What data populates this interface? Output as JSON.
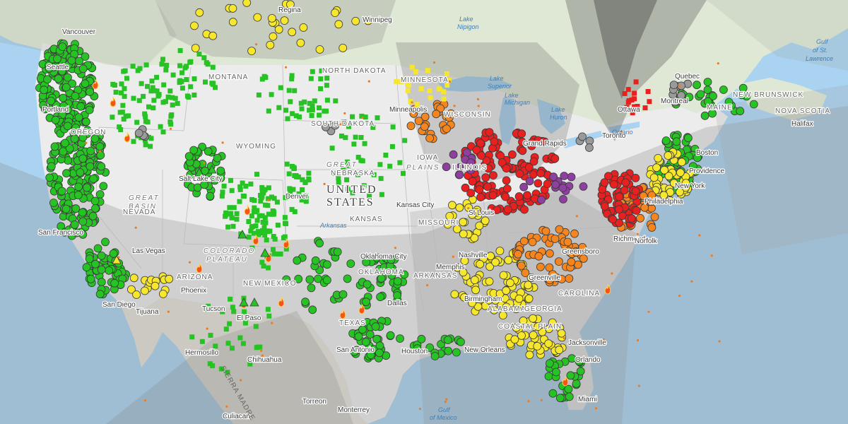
{
  "map": {
    "colors": {
      "ocean": "#a9d3f0",
      "land": "#e3e8dd",
      "us_land": "#ececec",
      "canada_land": "#dfe8d4",
      "mexico_land": "#e5e2d8",
      "smoke_light": "#8a8a8a",
      "smoke_dark": "#4a4a4a",
      "good": "#27c224",
      "moderate": "#f6e72c",
      "usg": "#f5861f",
      "unhealthy": "#e82020",
      "very_unhealthy": "#8e3fa0",
      "no_data": "#9a9a9a",
      "fire": "#f07b1c"
    },
    "country_labels": [
      {
        "name": "country-label-united",
        "text": "UNITED"
      },
      {
        "name": "country-label-states",
        "text": "STATES"
      }
    ],
    "region_labels": [
      {
        "name": "region-great-plains-1",
        "text": "GREAT"
      },
      {
        "name": "region-great-plains-2",
        "text": "PLAINS"
      },
      {
        "name": "region-great-basin-1",
        "text": "GREAT"
      },
      {
        "name": "region-great-basin-2",
        "text": "BASIN"
      },
      {
        "name": "region-colorado-plateau-1",
        "text": "COLORADO"
      },
      {
        "name": "region-colorado-plateau-2",
        "text": "PLATEAU"
      }
    ],
    "state_labels": [
      {
        "name": "state-north-dakota",
        "text": "NORTH DAKOTA"
      },
      {
        "name": "state-south-dakota",
        "text": "SOUTH DAKOTA"
      },
      {
        "name": "state-montana",
        "text": "MONTANA"
      },
      {
        "name": "state-wyoming",
        "text": "WYOMING"
      },
      {
        "name": "state-nebraska",
        "text": "NEBRASKA"
      },
      {
        "name": "state-nevada",
        "text": "NEVADA"
      },
      {
        "name": "state-kansas",
        "text": "KANSAS"
      },
      {
        "name": "state-missouri",
        "text": "MISSOURI"
      },
      {
        "name": "state-new-mexico",
        "text": "NEW MEXICO"
      },
      {
        "name": "state-texas",
        "text": "TEXAS"
      },
      {
        "name": "state-oklahoma",
        "text": "OKLAHOMA"
      },
      {
        "name": "state-arkansas",
        "text": "ARKANSAS"
      },
      {
        "name": "state-iowa",
        "text": "IOWA"
      },
      {
        "name": "state-minnesota",
        "text": "MINNESOTA"
      },
      {
        "name": "state-wisconsin",
        "text": "WISCONSIN"
      },
      {
        "name": "state-illinois",
        "text": "ILLINOIS"
      },
      {
        "name": "state-maine",
        "text": "MAINE"
      },
      {
        "name": "state-nova-scotia",
        "text": "NOVA SCOTIA"
      },
      {
        "name": "state-new-brunswick",
        "text": "NEW BRUNSWICK"
      },
      {
        "name": "state-oregon",
        "text": "OREGON"
      },
      {
        "name": "state-arizona",
        "text": "ARIZONA"
      },
      {
        "name": "state-alabama",
        "text": "ALABAMA"
      },
      {
        "name": "state-carolina",
        "text": "CAROLINA"
      },
      {
        "name": "state-georgia",
        "text": "GEORGIA"
      },
      {
        "name": "state-coastal-plain",
        "text": "COASTAL PLAIN"
      }
    ],
    "city_labels": [
      {
        "name": "city-vancouver",
        "text": "Vancouver"
      },
      {
        "name": "city-seattle",
        "text": "Seattle"
      },
      {
        "name": "city-portland",
        "text": "Portland"
      },
      {
        "name": "city-regina",
        "text": "Regina"
      },
      {
        "name": "city-winnipeg",
        "text": "Winnipeg"
      },
      {
        "name": "city-salt-lake",
        "text": "Salt Lake City"
      },
      {
        "name": "city-san-francisco",
        "text": "San Francisco"
      },
      {
        "name": "city-las-vegas",
        "text": "Las Vegas"
      },
      {
        "name": "city-san-diego",
        "text": "San Diego"
      },
      {
        "name": "city-tijuana",
        "text": "Tijuana"
      },
      {
        "name": "city-phoenix",
        "text": "Phoenix"
      },
      {
        "name": "city-tucson",
        "text": "Tucson"
      },
      {
        "name": "city-el-paso",
        "text": "El Paso"
      },
      {
        "name": "city-hermosillo",
        "text": "Hermosillo"
      },
      {
        "name": "city-chihuahua",
        "text": "Chihuahua"
      },
      {
        "name": "city-culiacan",
        "text": "Culiacan"
      },
      {
        "name": "city-torreon",
        "text": "Torreon"
      },
      {
        "name": "city-monterrey",
        "text": "Monterrey"
      },
      {
        "name": "city-denver",
        "text": "Denver"
      },
      {
        "name": "city-kansas-city",
        "text": "Kansas City"
      },
      {
        "name": "city-oklahoma-city",
        "text": "Oklahoma City"
      },
      {
        "name": "city-dallas",
        "text": "Dallas"
      },
      {
        "name": "city-san-antonio",
        "text": "San Antonio"
      },
      {
        "name": "city-houston",
        "text": "Houston"
      },
      {
        "name": "city-new-orleans",
        "text": "New Orleans"
      },
      {
        "name": "city-memphis",
        "text": "Memphis"
      },
      {
        "name": "city-nashville",
        "text": "Nashville"
      },
      {
        "name": "city-birmingham",
        "text": "Birmingham"
      },
      {
        "name": "city-st-louis",
        "text": "St Louis"
      },
      {
        "name": "city-minneapolis",
        "text": "Minneapolis"
      },
      {
        "name": "city-grand-rapids",
        "text": "Grand Rapids"
      },
      {
        "name": "city-toronto",
        "text": "Toronto"
      },
      {
        "name": "city-ottawa",
        "text": "Ottawa"
      },
      {
        "name": "city-montreal",
        "text": "Montreal"
      },
      {
        "name": "city-quebec",
        "text": "Quebec"
      },
      {
        "name": "city-boston",
        "text": "Boston"
      },
      {
        "name": "city-providence",
        "text": "Providence"
      },
      {
        "name": "city-new-york",
        "text": "New York"
      },
      {
        "name": "city-philadelphia",
        "text": "Philadelphia"
      },
      {
        "name": "city-richmond",
        "text": "Richmond"
      },
      {
        "name": "city-norfolk",
        "text": "Norfolk"
      },
      {
        "name": "city-greensboro",
        "text": "Greensboro"
      },
      {
        "name": "city-greenville",
        "text": "Greenville"
      },
      {
        "name": "city-jacksonville",
        "text": "Jacksonville"
      },
      {
        "name": "city-orlando",
        "text": "Orlando"
      },
      {
        "name": "city-miami",
        "text": "Miami"
      },
      {
        "name": "city-halifax",
        "text": "Halifax"
      }
    ],
    "water_labels": [
      {
        "name": "water-lake-nipigon-1",
        "text": "Lake"
      },
      {
        "name": "water-lake-nipigon-2",
        "text": "Nipigon"
      },
      {
        "name": "water-lake-superior-1",
        "text": "Lake"
      },
      {
        "name": "water-lake-superior-2",
        "text": "Superior"
      },
      {
        "name": "water-lake-michigan-1",
        "text": "Lake"
      },
      {
        "name": "water-lake-michigan-2",
        "text": "Michigan"
      },
      {
        "name": "water-lake-huron-1",
        "text": "Lake"
      },
      {
        "name": "water-lake-huron-2",
        "text": "Huron"
      },
      {
        "name": "water-lake-ontario",
        "text": "Ontario"
      },
      {
        "name": "water-arkansas",
        "text": "Arkansas"
      },
      {
        "name": "water-gulf-st-lawrence-1",
        "text": "Gulf"
      },
      {
        "name": "water-gulf-st-lawrence-2",
        "text": "of St."
      },
      {
        "name": "water-gulf-st-lawrence-3",
        "text": "Lawrence"
      },
      {
        "name": "water-gulf-of-mexico-1",
        "text": "Gulf"
      },
      {
        "name": "water-gulf-of-mexico-2",
        "text": "of Mexico"
      },
      {
        "name": "water-sierra-madre",
        "text": "SIERRA MADRE"
      }
    ]
  }
}
